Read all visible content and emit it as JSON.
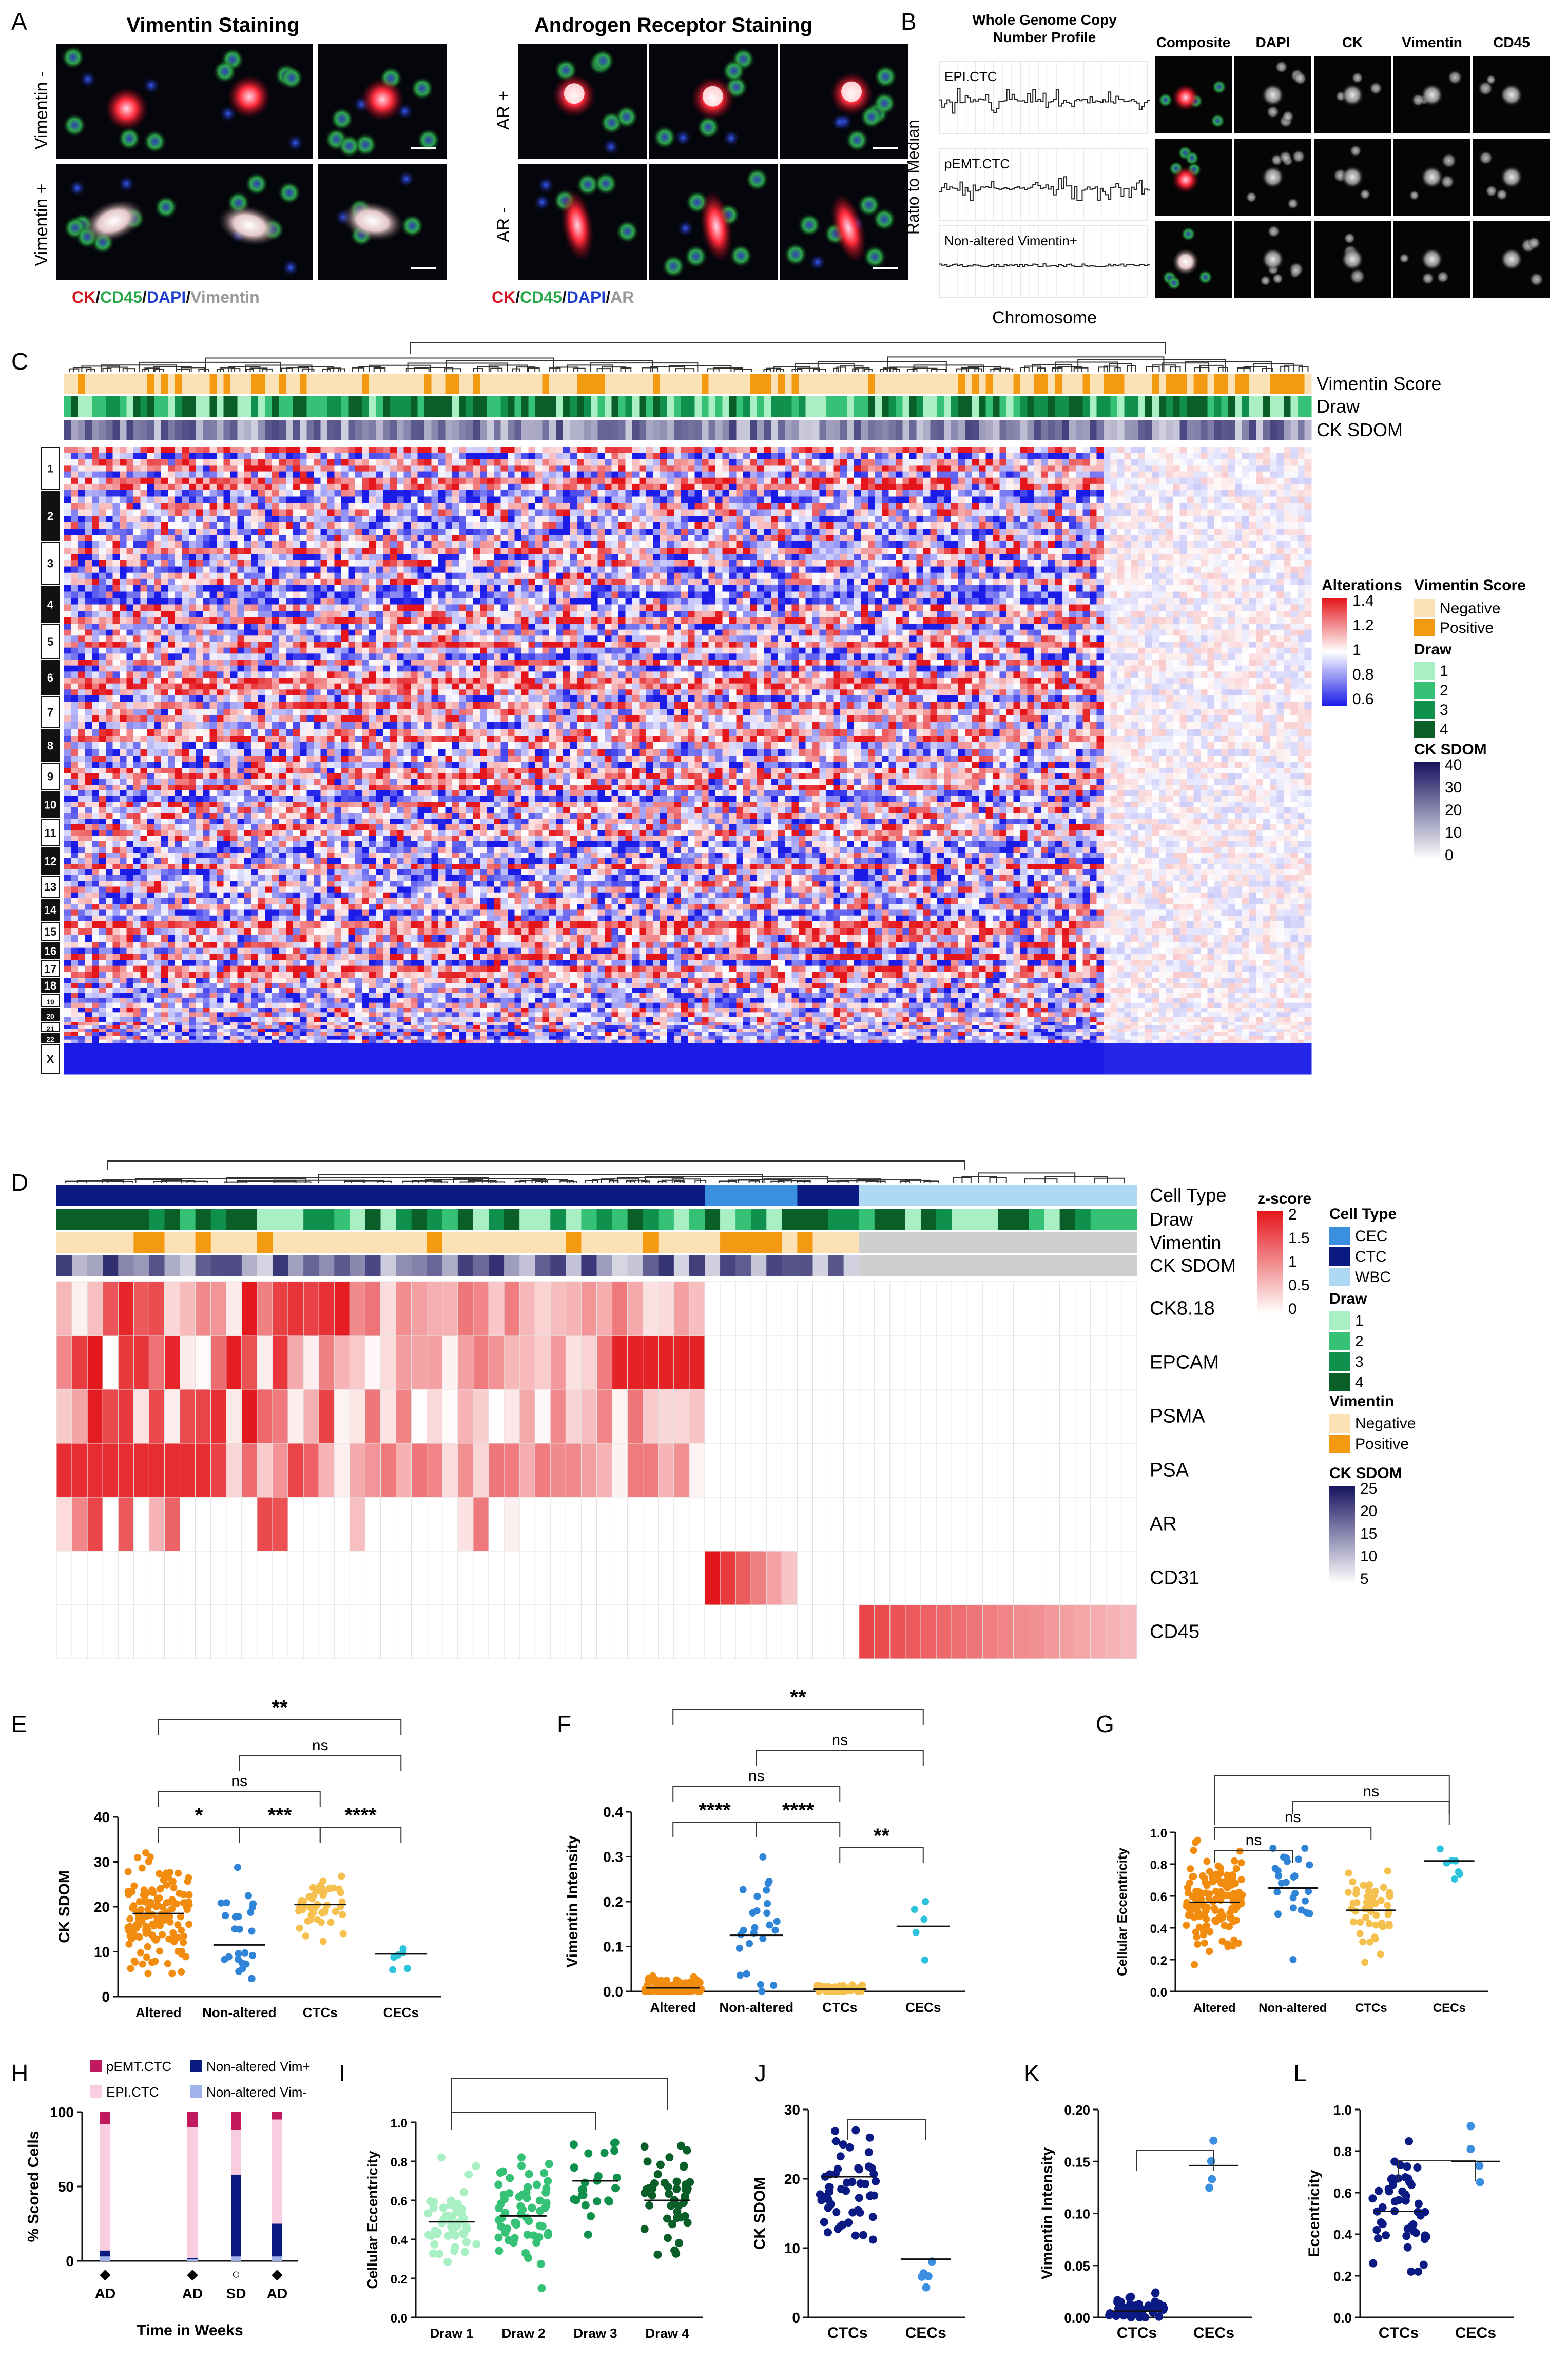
{
  "panels": {
    "A": {
      "letter": "A",
      "title_left": "Vimentin Staining",
      "title_right": "Androgen Receptor Staining",
      "row_left_top": "Vimentin -",
      "row_left_bottom": "Vimentin +",
      "row_right_top": "AR +",
      "row_right_bottom": "AR -",
      "legend_left": [
        {
          "text": "CK",
          "color": "#d4141e"
        },
        {
          "text": "/",
          "color": "#111111"
        },
        {
          "text": "CD45",
          "color": "#2ba84a"
        },
        {
          "text": "/",
          "color": "#111111"
        },
        {
          "text": "DAPI",
          "color": "#1f3fd1"
        },
        {
          "text": "/",
          "color": "#111111"
        },
        {
          "text": "Vimentin",
          "color": "#9a9a9a"
        }
      ],
      "legend_right": [
        {
          "text": "CK",
          "color": "#d4141e"
        },
        {
          "text": "/",
          "color": "#111111"
        },
        {
          "text": "CD45",
          "color": "#2ba84a"
        },
        {
          "text": "/",
          "color": "#111111"
        },
        {
          "text": "DAPI",
          "color": "#1f3fd1"
        },
        {
          "text": "/",
          "color": "#111111"
        },
        {
          "text": "AR",
          "color": "#9a9a9a"
        }
      ]
    },
    "B": {
      "letter": "B",
      "title_line1": "Whole Genome Copy",
      "title_line2": "Number Profile",
      "ylabel": "Ratio to Median",
      "xlabel": "Chromosome",
      "profiles": [
        "EPI.CTC",
        "pEMT.CTC",
        "Non-altered Vimentin+"
      ],
      "channels": [
        "Composite",
        "DAPI",
        "CK",
        "Vimentin",
        "CD45"
      ]
    },
    "C": {
      "letter": "C",
      "tracks": [
        "Vimentin Score",
        "Draw",
        "CK SDOM"
      ],
      "chromosomes": [
        "1",
        "2",
        "3",
        "4",
        "5",
        "6",
        "7",
        "8",
        "9",
        "10",
        "11",
        "12",
        "13",
        "14",
        "15",
        "16",
        "17",
        "18",
        "19",
        "20",
        "21",
        "22",
        "X"
      ],
      "legend_alterations_title": "Alterations",
      "legend_alterations_ticks": [
        "1.4",
        "1.2",
        "1",
        "0.8",
        "0.6"
      ],
      "legend_vimentin_title": "Vimentin Score",
      "legend_vimentin_items": [
        "Negative",
        "Positive"
      ],
      "legend_draw_title": "Draw",
      "legend_draw_items": [
        "1",
        "2",
        "3",
        "4"
      ],
      "legend_cksdom_title": "CK SDOM",
      "legend_cksdom_ticks": [
        "40",
        "30",
        "20",
        "10",
        "0"
      ]
    },
    "D": {
      "letter": "D",
      "tracks": [
        "Cell Type",
        "Draw",
        "Vimentin",
        "CK SDOM"
      ],
      "rows": [
        "CK8.18",
        "EPCAM",
        "PSMA",
        "PSA",
        "AR",
        "CD31",
        "CD45"
      ],
      "legend_z_title": "z-score",
      "legend_z_ticks": [
        "2",
        "1.5",
        "1",
        "0.5",
        "0"
      ],
      "legend_celltype_title": "Cell Type",
      "legend_celltype_items": [
        "CEC",
        "CTC",
        "WBC"
      ],
      "legend_draw_title": "Draw",
      "legend_draw_items": [
        "1",
        "2",
        "3",
        "4"
      ],
      "legend_vim_title": "Vimentin",
      "legend_vim_items": [
        "Negative",
        "Positive"
      ],
      "legend_cksdom_title": "CK SDOM",
      "legend_cksdom_ticks": [
        "25",
        "20",
        "15",
        "10",
        "5"
      ]
    },
    "E": {
      "letter": "E",
      "ylabel": "CK SDOM",
      "groups": [
        "Altered",
        "Non-altered",
        "CTCs",
        "CECs"
      ],
      "yticks": [
        "0",
        "10",
        "20",
        "30",
        "40"
      ],
      "sig": [
        "**",
        "ns",
        "ns",
        "*",
        "***",
        "****"
      ],
      "medians": [
        18.5,
        11.5,
        20.5,
        9.5
      ]
    },
    "F": {
      "letter": "F",
      "ylabel": "Vimentin Intensity",
      "groups": [
        "Altered",
        "Non-altered",
        "CTCs",
        "CECs"
      ],
      "yticks": [
        "0.0",
        "0.1",
        "0.2",
        "0.3",
        "0.4"
      ],
      "sig": [
        "**",
        "ns",
        "ns",
        "****",
        "****",
        "**"
      ],
      "medians": [
        0.008,
        0.125,
        0.005,
        0.145
      ]
    },
    "G": {
      "letter": "G",
      "ylabel": "Cellular Eccentricity",
      "groups": [
        "Altered",
        "Non-altered",
        "CTCs",
        "CECs"
      ],
      "yticks": [
        "0.0",
        "0.2",
        "0.4",
        "0.6",
        "0.8",
        "1.0"
      ],
      "sig": [
        "ns",
        "ns",
        "ns"
      ],
      "medians": [
        0.56,
        0.65,
        0.51,
        0.82
      ]
    },
    "H": {
      "letter": "H",
      "ylabel": "% Scored Cells",
      "xlabel": "Time in Weeks",
      "yticks": [
        "0",
        "50",
        "100"
      ],
      "legend": [
        "pEMT.CTC",
        "EPI.CTC",
        "Non-altered Vim+",
        "Non-altered Vim-"
      ],
      "markers": [
        "AD",
        "AD",
        "SD",
        "AD"
      ]
    },
    "I": {
      "letter": "I",
      "ylabel": "Cellular Eccentricity",
      "groups": [
        "Draw 1",
        "Draw 2",
        "Draw 3",
        "Draw 4"
      ],
      "yticks": [
        "0.0",
        "0.2",
        "0.4",
        "0.6",
        "0.8",
        "1.0"
      ],
      "medians": [
        0.49,
        0.52,
        0.7,
        0.6
      ]
    },
    "J": {
      "letter": "J",
      "ylabel": "CK SDOM",
      "groups": [
        "CTCs",
        "CECs"
      ],
      "yticks": [
        "0",
        "10",
        "20",
        "30"
      ],
      "medians": [
        20.3,
        8.4
      ]
    },
    "K": {
      "letter": "K",
      "ylabel": "Vimentin Intensity",
      "groups": [
        "CTCs",
        "CECs"
      ],
      "yticks": [
        "0.00",
        "0.05",
        "0.10",
        "0.15",
        "0.20"
      ],
      "medians": [
        0.006,
        0.146
      ]
    },
    "L": {
      "letter": "L",
      "ylabel": "Eccentricity",
      "groups": [
        "CTCs",
        "CECs"
      ],
      "yticks": [
        "0.0",
        "0.2",
        "0.4",
        "0.6",
        "0.8",
        "1.0"
      ],
      "medians": [
        0.51,
        0.75
      ]
    }
  },
  "colors": {
    "red": "#e4161b",
    "blue": "#1b1be8",
    "orange": "#f39a12",
    "peach": "#fce1b5",
    "draw1": "#a8f0c4",
    "draw2": "#35c277",
    "draw3": "#10904d",
    "draw4": "#0a5e27",
    "cec": "#3a8fe0",
    "ctc": "#0b1a82",
    "wbc": "#aed8f4",
    "altered": "#f28c0f",
    "nonaltered": "#2f84d8",
    "ctcs": "#f6c04e",
    "cecs": "#2ec3dc",
    "pemt": "#c21a5f",
    "epi": "#f8cde0",
    "vimpos": "#0b1a82",
    "vimneg": "#9fb3ea"
  }
}
